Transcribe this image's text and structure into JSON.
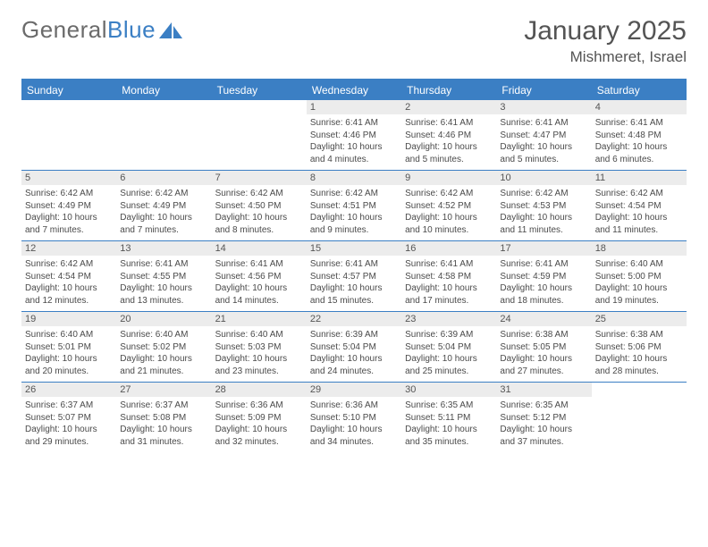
{
  "logo": {
    "text1": "General",
    "text2": "Blue"
  },
  "title": "January 2025",
  "location": "Mishmeret, Israel",
  "colors": {
    "accent": "#3b7fc4",
    "header_text": "#ffffff",
    "daynum_bg": "#ececec",
    "text": "#4a4a4a",
    "title_text": "#545454",
    "logo_grey": "#6b6b6b"
  },
  "day_names": [
    "Sunday",
    "Monday",
    "Tuesday",
    "Wednesday",
    "Thursday",
    "Friday",
    "Saturday"
  ],
  "weeks": [
    [
      {
        "n": "",
        "sr": "",
        "ss": "",
        "dl": ""
      },
      {
        "n": "",
        "sr": "",
        "ss": "",
        "dl": ""
      },
      {
        "n": "",
        "sr": "",
        "ss": "",
        "dl": ""
      },
      {
        "n": "1",
        "sr": "Sunrise: 6:41 AM",
        "ss": "Sunset: 4:46 PM",
        "dl": "Daylight: 10 hours and 4 minutes."
      },
      {
        "n": "2",
        "sr": "Sunrise: 6:41 AM",
        "ss": "Sunset: 4:46 PM",
        "dl": "Daylight: 10 hours and 5 minutes."
      },
      {
        "n": "3",
        "sr": "Sunrise: 6:41 AM",
        "ss": "Sunset: 4:47 PM",
        "dl": "Daylight: 10 hours and 5 minutes."
      },
      {
        "n": "4",
        "sr": "Sunrise: 6:41 AM",
        "ss": "Sunset: 4:48 PM",
        "dl": "Daylight: 10 hours and 6 minutes."
      }
    ],
    [
      {
        "n": "5",
        "sr": "Sunrise: 6:42 AM",
        "ss": "Sunset: 4:49 PM",
        "dl": "Daylight: 10 hours and 7 minutes."
      },
      {
        "n": "6",
        "sr": "Sunrise: 6:42 AM",
        "ss": "Sunset: 4:49 PM",
        "dl": "Daylight: 10 hours and 7 minutes."
      },
      {
        "n": "7",
        "sr": "Sunrise: 6:42 AM",
        "ss": "Sunset: 4:50 PM",
        "dl": "Daylight: 10 hours and 8 minutes."
      },
      {
        "n": "8",
        "sr": "Sunrise: 6:42 AM",
        "ss": "Sunset: 4:51 PM",
        "dl": "Daylight: 10 hours and 9 minutes."
      },
      {
        "n": "9",
        "sr": "Sunrise: 6:42 AM",
        "ss": "Sunset: 4:52 PM",
        "dl": "Daylight: 10 hours and 10 minutes."
      },
      {
        "n": "10",
        "sr": "Sunrise: 6:42 AM",
        "ss": "Sunset: 4:53 PM",
        "dl": "Daylight: 10 hours and 11 minutes."
      },
      {
        "n": "11",
        "sr": "Sunrise: 6:42 AM",
        "ss": "Sunset: 4:54 PM",
        "dl": "Daylight: 10 hours and 11 minutes."
      }
    ],
    [
      {
        "n": "12",
        "sr": "Sunrise: 6:42 AM",
        "ss": "Sunset: 4:54 PM",
        "dl": "Daylight: 10 hours and 12 minutes."
      },
      {
        "n": "13",
        "sr": "Sunrise: 6:41 AM",
        "ss": "Sunset: 4:55 PM",
        "dl": "Daylight: 10 hours and 13 minutes."
      },
      {
        "n": "14",
        "sr": "Sunrise: 6:41 AM",
        "ss": "Sunset: 4:56 PM",
        "dl": "Daylight: 10 hours and 14 minutes."
      },
      {
        "n": "15",
        "sr": "Sunrise: 6:41 AM",
        "ss": "Sunset: 4:57 PM",
        "dl": "Daylight: 10 hours and 15 minutes."
      },
      {
        "n": "16",
        "sr": "Sunrise: 6:41 AM",
        "ss": "Sunset: 4:58 PM",
        "dl": "Daylight: 10 hours and 17 minutes."
      },
      {
        "n": "17",
        "sr": "Sunrise: 6:41 AM",
        "ss": "Sunset: 4:59 PM",
        "dl": "Daylight: 10 hours and 18 minutes."
      },
      {
        "n": "18",
        "sr": "Sunrise: 6:40 AM",
        "ss": "Sunset: 5:00 PM",
        "dl": "Daylight: 10 hours and 19 minutes."
      }
    ],
    [
      {
        "n": "19",
        "sr": "Sunrise: 6:40 AM",
        "ss": "Sunset: 5:01 PM",
        "dl": "Daylight: 10 hours and 20 minutes."
      },
      {
        "n": "20",
        "sr": "Sunrise: 6:40 AM",
        "ss": "Sunset: 5:02 PM",
        "dl": "Daylight: 10 hours and 21 minutes."
      },
      {
        "n": "21",
        "sr": "Sunrise: 6:40 AM",
        "ss": "Sunset: 5:03 PM",
        "dl": "Daylight: 10 hours and 23 minutes."
      },
      {
        "n": "22",
        "sr": "Sunrise: 6:39 AM",
        "ss": "Sunset: 5:04 PM",
        "dl": "Daylight: 10 hours and 24 minutes."
      },
      {
        "n": "23",
        "sr": "Sunrise: 6:39 AM",
        "ss": "Sunset: 5:04 PM",
        "dl": "Daylight: 10 hours and 25 minutes."
      },
      {
        "n": "24",
        "sr": "Sunrise: 6:38 AM",
        "ss": "Sunset: 5:05 PM",
        "dl": "Daylight: 10 hours and 27 minutes."
      },
      {
        "n": "25",
        "sr": "Sunrise: 6:38 AM",
        "ss": "Sunset: 5:06 PM",
        "dl": "Daylight: 10 hours and 28 minutes."
      }
    ],
    [
      {
        "n": "26",
        "sr": "Sunrise: 6:37 AM",
        "ss": "Sunset: 5:07 PM",
        "dl": "Daylight: 10 hours and 29 minutes."
      },
      {
        "n": "27",
        "sr": "Sunrise: 6:37 AM",
        "ss": "Sunset: 5:08 PM",
        "dl": "Daylight: 10 hours and 31 minutes."
      },
      {
        "n": "28",
        "sr": "Sunrise: 6:36 AM",
        "ss": "Sunset: 5:09 PM",
        "dl": "Daylight: 10 hours and 32 minutes."
      },
      {
        "n": "29",
        "sr": "Sunrise: 6:36 AM",
        "ss": "Sunset: 5:10 PM",
        "dl": "Daylight: 10 hours and 34 minutes."
      },
      {
        "n": "30",
        "sr": "Sunrise: 6:35 AM",
        "ss": "Sunset: 5:11 PM",
        "dl": "Daylight: 10 hours and 35 minutes."
      },
      {
        "n": "31",
        "sr": "Sunrise: 6:35 AM",
        "ss": "Sunset: 5:12 PM",
        "dl": "Daylight: 10 hours and 37 minutes."
      },
      {
        "n": "",
        "sr": "",
        "ss": "",
        "dl": ""
      }
    ]
  ]
}
